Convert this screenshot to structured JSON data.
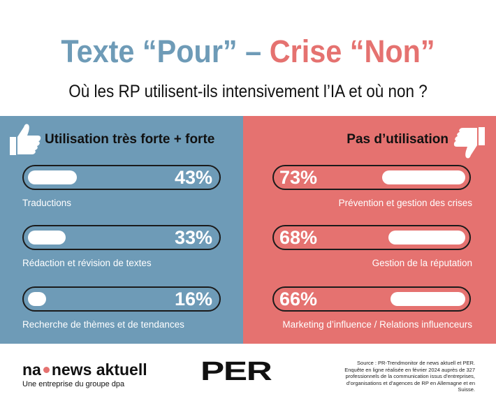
{
  "header": {
    "title_part1": "Texte “Pour”",
    "title_dash": "–",
    "title_part2": "Crise “Non”",
    "subtitle": "Où les RP utilisent-ils intensivement l’IA et où non ?"
  },
  "chart_data": [
    {
      "type": "bar",
      "title": "Utilisation très forte + forte",
      "categories": [
        "Traductions",
        "Rédaction et révision de textes",
        "Recherche de thèmes et de tendances"
      ],
      "values": [
        43,
        33,
        16
      ],
      "value_labels": [
        "43%",
        "33%",
        "16%"
      ],
      "unit": "%",
      "ylim": [
        0,
        100
      ],
      "orientation": "horizontal",
      "color": "#6e9bb7"
    },
    {
      "type": "bar",
      "title": "Pas d’utilisation",
      "categories": [
        "Prévention et gestion des crises",
        "Gestion de la réputation",
        "Marketing d’influence / Relations influenceurs"
      ],
      "values": [
        73,
        68,
        66
      ],
      "value_labels": [
        "73%",
        "68%",
        "66%"
      ],
      "unit": "%",
      "ylim": [
        0,
        100
      ],
      "orientation": "horizontal",
      "color": "#e57270"
    }
  ],
  "icons": {
    "left": "thumbs-up-icon",
    "right": "thumbs-down-icon"
  },
  "footer": {
    "logo_na_left": "na",
    "logo_na_right": "news aktuell",
    "logo_na_sub": "Une entreprise du groupe dpa",
    "logo_per": "PER",
    "source": "Source : PR-Trendmonitor de news aktuell et PER. Enquête en ligne réalisée en février 2024 auprès de 327 professionnels de la communication issus d’entreprises, d’organisations et d’agences de RP en Allemagne et en Suisse."
  }
}
